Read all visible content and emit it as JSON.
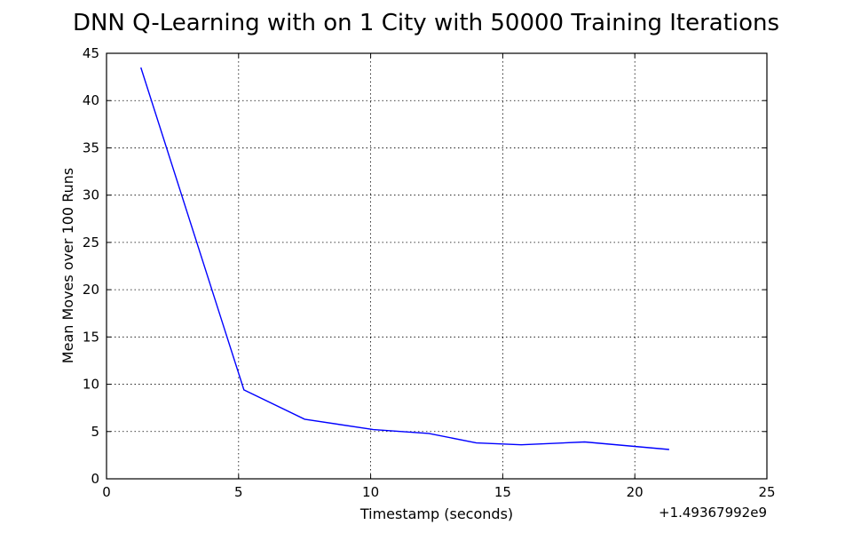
{
  "chart_data": {
    "type": "line",
    "title": "DNN Q-Learning with on 1 City with 50000 Training Iterations",
    "xlabel": "Timestamp (seconds)",
    "ylabel": "Mean Moves over 100 Runs",
    "x_offset_label": "+1.49367992e9",
    "xlim": [
      0,
      25
    ],
    "ylim": [
      0,
      45
    ],
    "xticks": [
      0,
      5,
      10,
      15,
      20,
      25
    ],
    "yticks": [
      0,
      5,
      10,
      15,
      20,
      25,
      30,
      35,
      40,
      45
    ],
    "grid": true,
    "series": [
      {
        "color": "#0000ff",
        "x": [
          1.3,
          5.2,
          7.5,
          10.1,
          12.2,
          14.0,
          15.7,
          18.1,
          21.3
        ],
        "y": [
          43.5,
          9.4,
          6.3,
          5.2,
          4.8,
          3.8,
          3.6,
          3.9,
          3.1
        ]
      }
    ]
  }
}
